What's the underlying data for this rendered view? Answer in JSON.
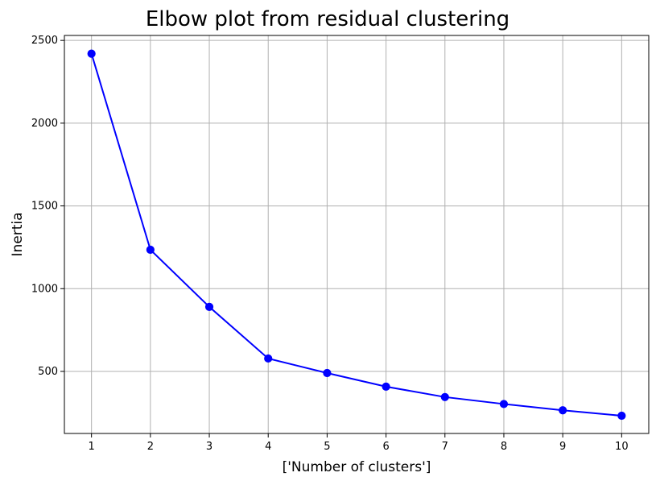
{
  "chart_data": {
    "type": "line",
    "title": "Elbow plot from residual clustering",
    "xlabel": "['Number of clusters']",
    "ylabel": "Inertia",
    "x": [
      1,
      2,
      3,
      4,
      5,
      6,
      7,
      8,
      9,
      10
    ],
    "series": [
      {
        "values": [
          2420,
          1235,
          890,
          578,
          490,
          408,
          345,
          303,
          265,
          232
        ],
        "color": "#0000ff",
        "marker": "circle"
      }
    ],
    "xticks": [
      "1",
      "2",
      "3",
      "4",
      "5",
      "6",
      "7",
      "8",
      "9",
      "10"
    ],
    "yticks": [
      "500",
      "1000",
      "1500",
      "2000",
      "2500"
    ],
    "xlim": [
      0.54,
      10.46
    ],
    "ylim": [
      125,
      2530
    ],
    "grid": true
  }
}
